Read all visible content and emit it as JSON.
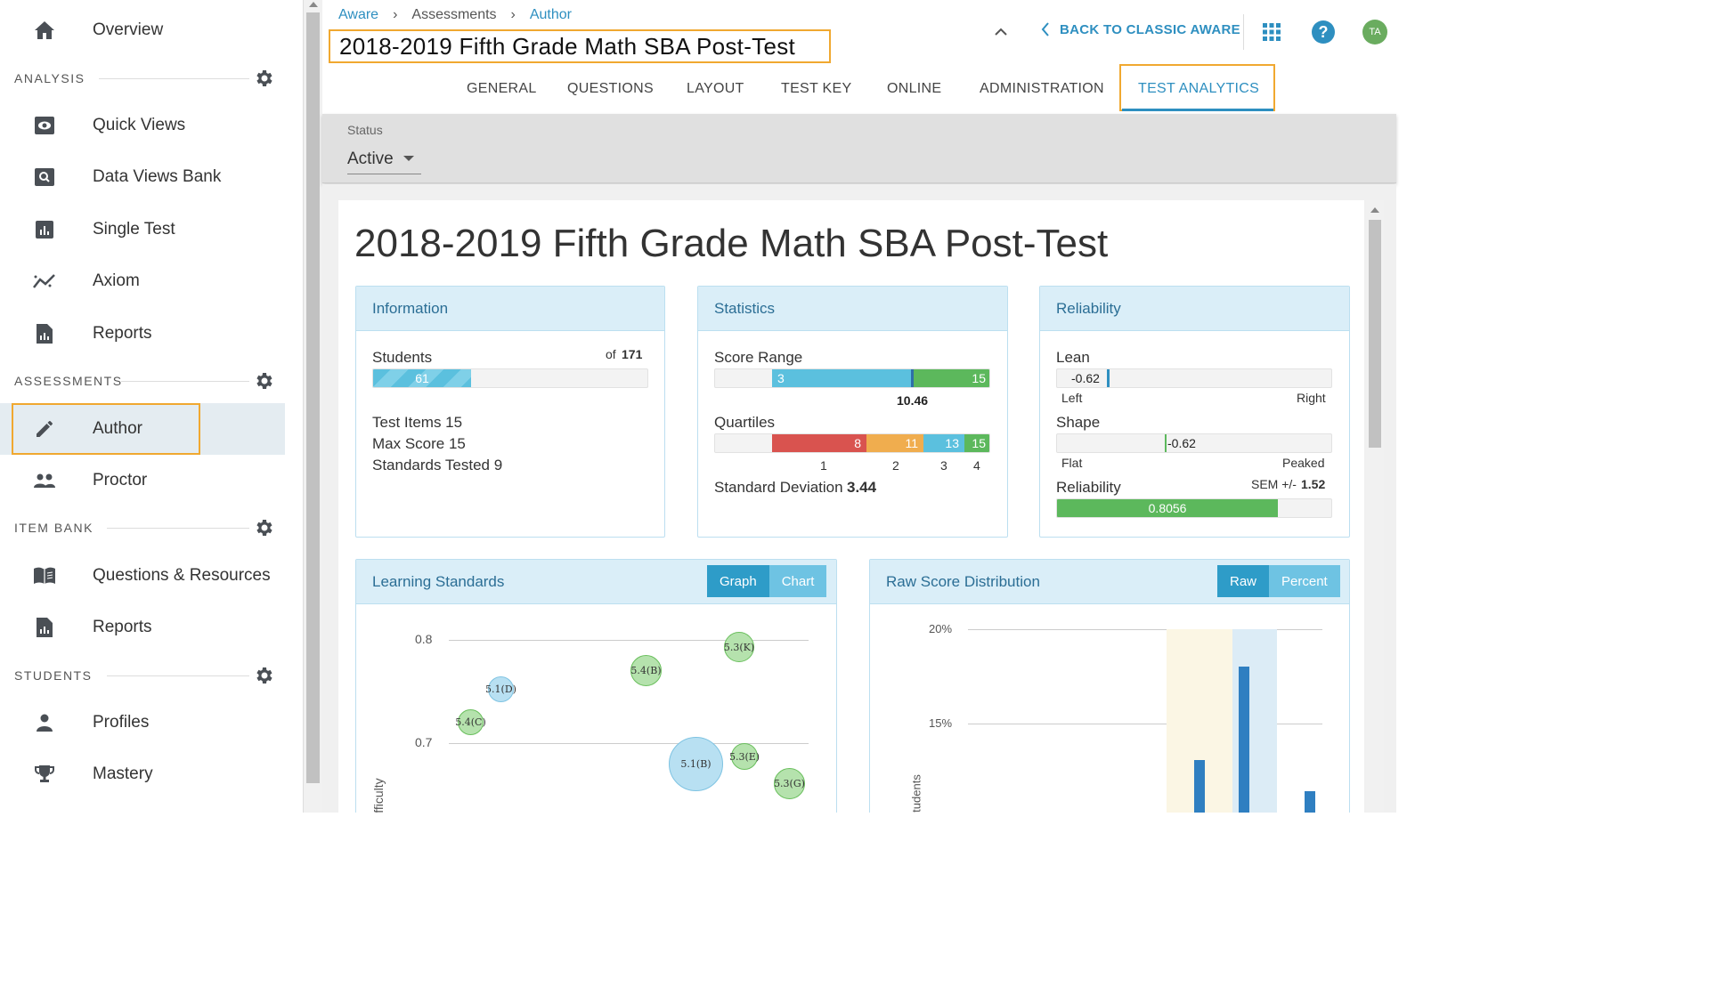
{
  "sidebar": {
    "overview": "Overview",
    "sections": {
      "analysis": "ANALYSIS",
      "assessments": "ASSESSMENTS",
      "item_bank": "ITEM BANK",
      "students": "STUDENTS"
    },
    "analysis_items": [
      "Quick Views",
      "Data Views Bank",
      "Single Test",
      "Axiom",
      "Reports"
    ],
    "assessment_items": [
      "Author",
      "Proctor"
    ],
    "item_bank_items": [
      "Questions & Resources",
      "Reports"
    ],
    "student_items": [
      "Profiles",
      "Mastery"
    ]
  },
  "header": {
    "breadcrumb": [
      "Aware",
      "Assessments",
      "Author"
    ],
    "title": "2018-2019 Fifth Grade Math SBA Post-Test",
    "back_link": "BACK TO CLASSIC AWARE",
    "help": "?",
    "avatar_initials": "TA",
    "tabs": [
      "GENERAL",
      "QUESTIONS",
      "LAYOUT",
      "TEST KEY",
      "ONLINE",
      "ADMINISTRATION",
      "TEST ANALYTICS"
    ],
    "active_tab": "TEST ANALYTICS"
  },
  "status": {
    "label": "Status",
    "value": "Active"
  },
  "page": {
    "title": "2018-2019 Fifth Grade Math SBA Post-Test"
  },
  "information": {
    "title": "Information",
    "students_label": "Students",
    "students_of": "of",
    "students_total": "171",
    "students_value": "61",
    "students_fraction": 0.357,
    "test_items": "Test Items 15",
    "max_score": "Max Score 15",
    "standards_tested": "Standards Tested 9"
  },
  "statistics": {
    "title": "Statistics",
    "score_range_label": "Score Range",
    "range_min": "3",
    "range_max": "15",
    "mean": "10.46",
    "quartiles_label": "Quartiles",
    "quartile_values": [
      "8",
      "11",
      "13",
      "15"
    ],
    "quartile_numbers": [
      "1",
      "2",
      "3",
      "4"
    ],
    "sd_label": "Standard Deviation",
    "sd_value": "3.44"
  },
  "reliability": {
    "title": "Reliability",
    "lean_label": "Lean",
    "lean_value": "-0.62",
    "lean_left": "Left",
    "lean_right": "Right",
    "shape_label": "Shape",
    "shape_value": "-0.62",
    "shape_left": "Flat",
    "shape_right": "Peaked",
    "reliability_label": "Reliability",
    "sem_label": "SEM +/-",
    "sem_value": "1.52",
    "reliability_value": "0.8056",
    "reliability_fraction": 0.8056
  },
  "learning_standards": {
    "title": "Learning Standards",
    "toggle": [
      "Graph",
      "Chart"
    ],
    "active_toggle": "Graph",
    "y_ticks": [
      "0.8",
      "0.7"
    ],
    "y_axis_label": "Difficulty",
    "bubbles": [
      {
        "label": "5.3(K)",
        "color": "green"
      },
      {
        "label": "5.4(B)",
        "color": "green"
      },
      {
        "label": "5.1(D)",
        "color": "blue"
      },
      {
        "label": "5.4(C)",
        "color": "green"
      },
      {
        "label": "5.1(B)",
        "color": "blue"
      },
      {
        "label": "5.3(E)",
        "color": "green"
      },
      {
        "label": "5.3(G)",
        "color": "green"
      }
    ]
  },
  "raw_score": {
    "title": "Raw Score Distribution",
    "toggle": [
      "Raw",
      "Percent"
    ],
    "active_toggle": "Raw",
    "y_ticks": [
      "20%",
      "15%"
    ],
    "y_axis_label": "Students"
  },
  "colors": {
    "accent": "#2e8fc0",
    "highlight": "#f0a830",
    "green": "#5cb85c",
    "blue": "#5bc0de",
    "red": "#d9534f",
    "orange": "#f0ad4e"
  }
}
